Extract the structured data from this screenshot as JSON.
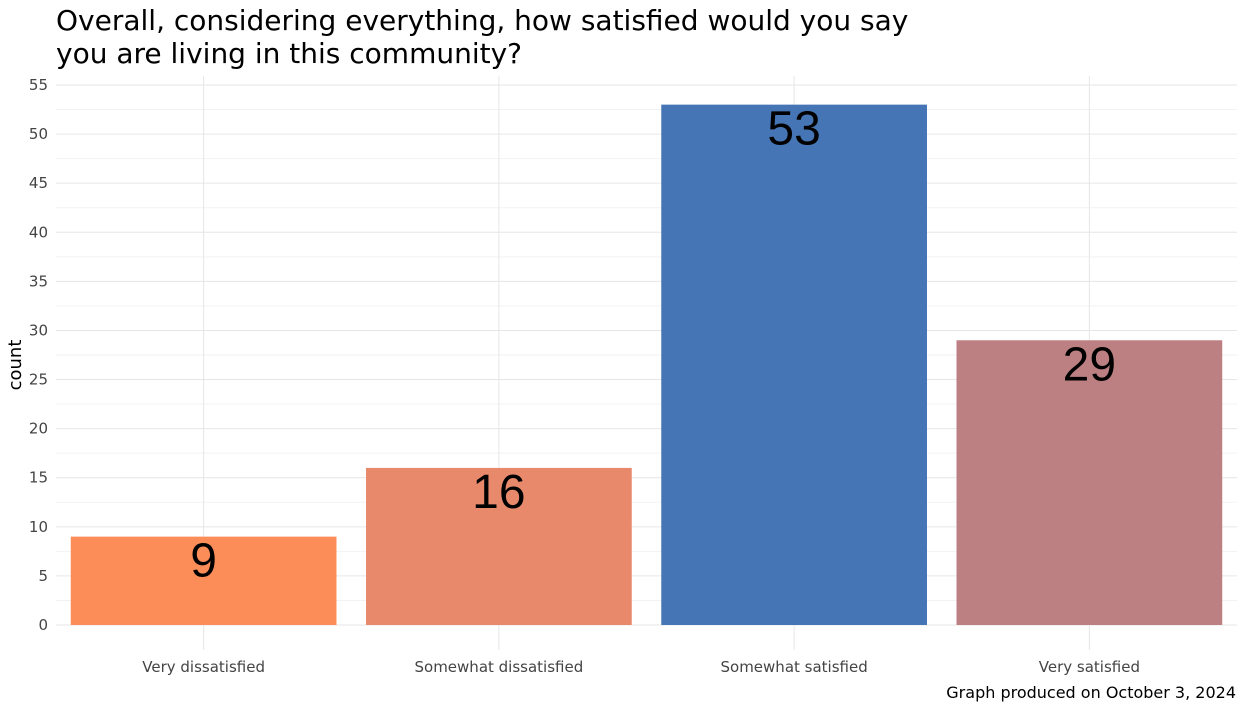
{
  "title_lines": [
    "Overall, considering everything, how satisfied would you say",
    "you are living in this community?"
  ],
  "caption": "Graph produced on October  3, 2024",
  "chart_data": {
    "type": "bar",
    "title": "Overall, considering everything, how satisfied would you say you are living in this community?",
    "xlabel": "",
    "ylabel": "count",
    "categories": [
      "Very dissatisfied",
      "Somewhat dissatisfied",
      "Somewhat satisfied",
      "Very satisfied"
    ],
    "values": [
      9,
      16,
      53,
      29
    ],
    "colors": [
      "#fc8d59",
      "#e8896b",
      "#4575b4",
      "#bc8082"
    ],
    "ylim": [
      0,
      55
    ],
    "yticks": [
      0,
      5,
      10,
      15,
      20,
      25,
      30,
      35,
      40,
      45,
      50,
      55
    ],
    "grid": true,
    "legend": "none"
  }
}
